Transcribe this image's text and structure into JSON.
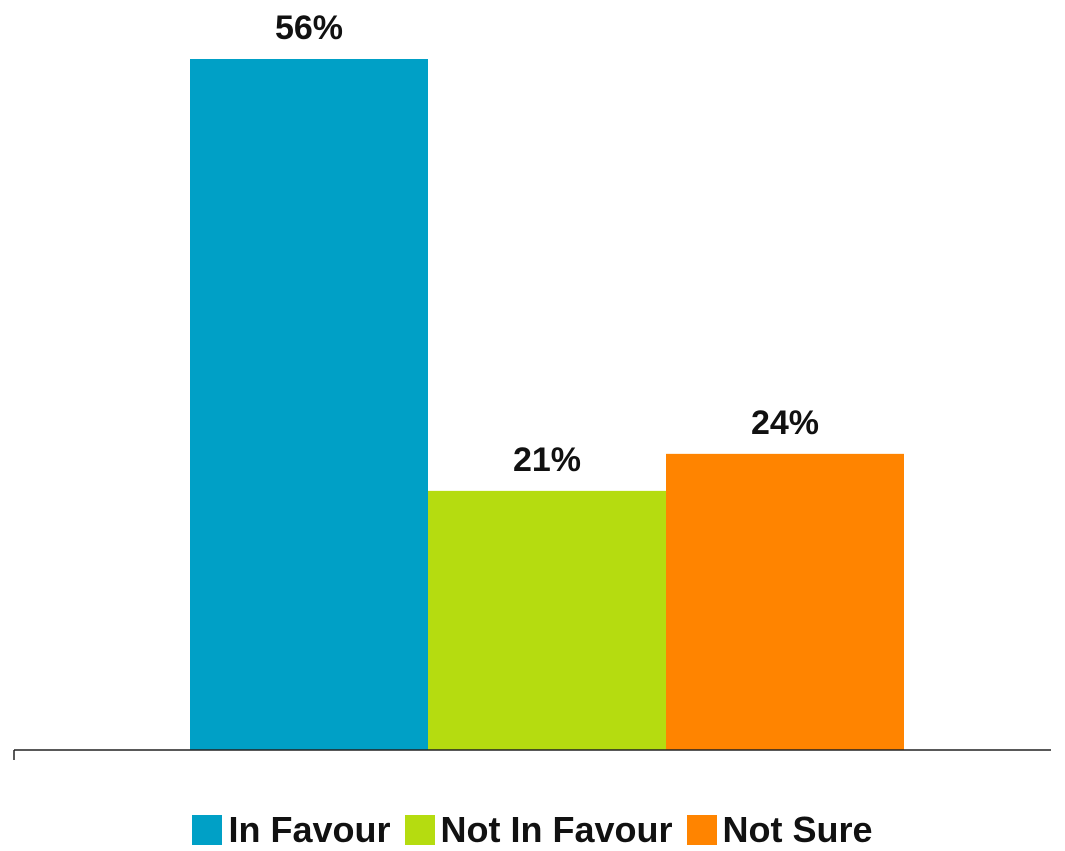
{
  "chart_data": {
    "type": "bar",
    "categories": [
      "In Favour",
      "Not In Favour",
      "Not Sure"
    ],
    "values": [
      56,
      21,
      24
    ],
    "value_labels": [
      "56%",
      "21%",
      "24%"
    ],
    "colors": [
      "#00a0c6",
      "#b5dc10",
      "#ff8400"
    ],
    "ylim": [
      0,
      60
    ],
    "grid": false,
    "legend": {
      "position": "bottom",
      "entries": [
        {
          "label": "In Favour",
          "color": "#00a0c6"
        },
        {
          "label": "Not In Favour",
          "color": "#b5dc10"
        },
        {
          "label": "Not Sure",
          "color": "#ff8400"
        }
      ]
    }
  }
}
